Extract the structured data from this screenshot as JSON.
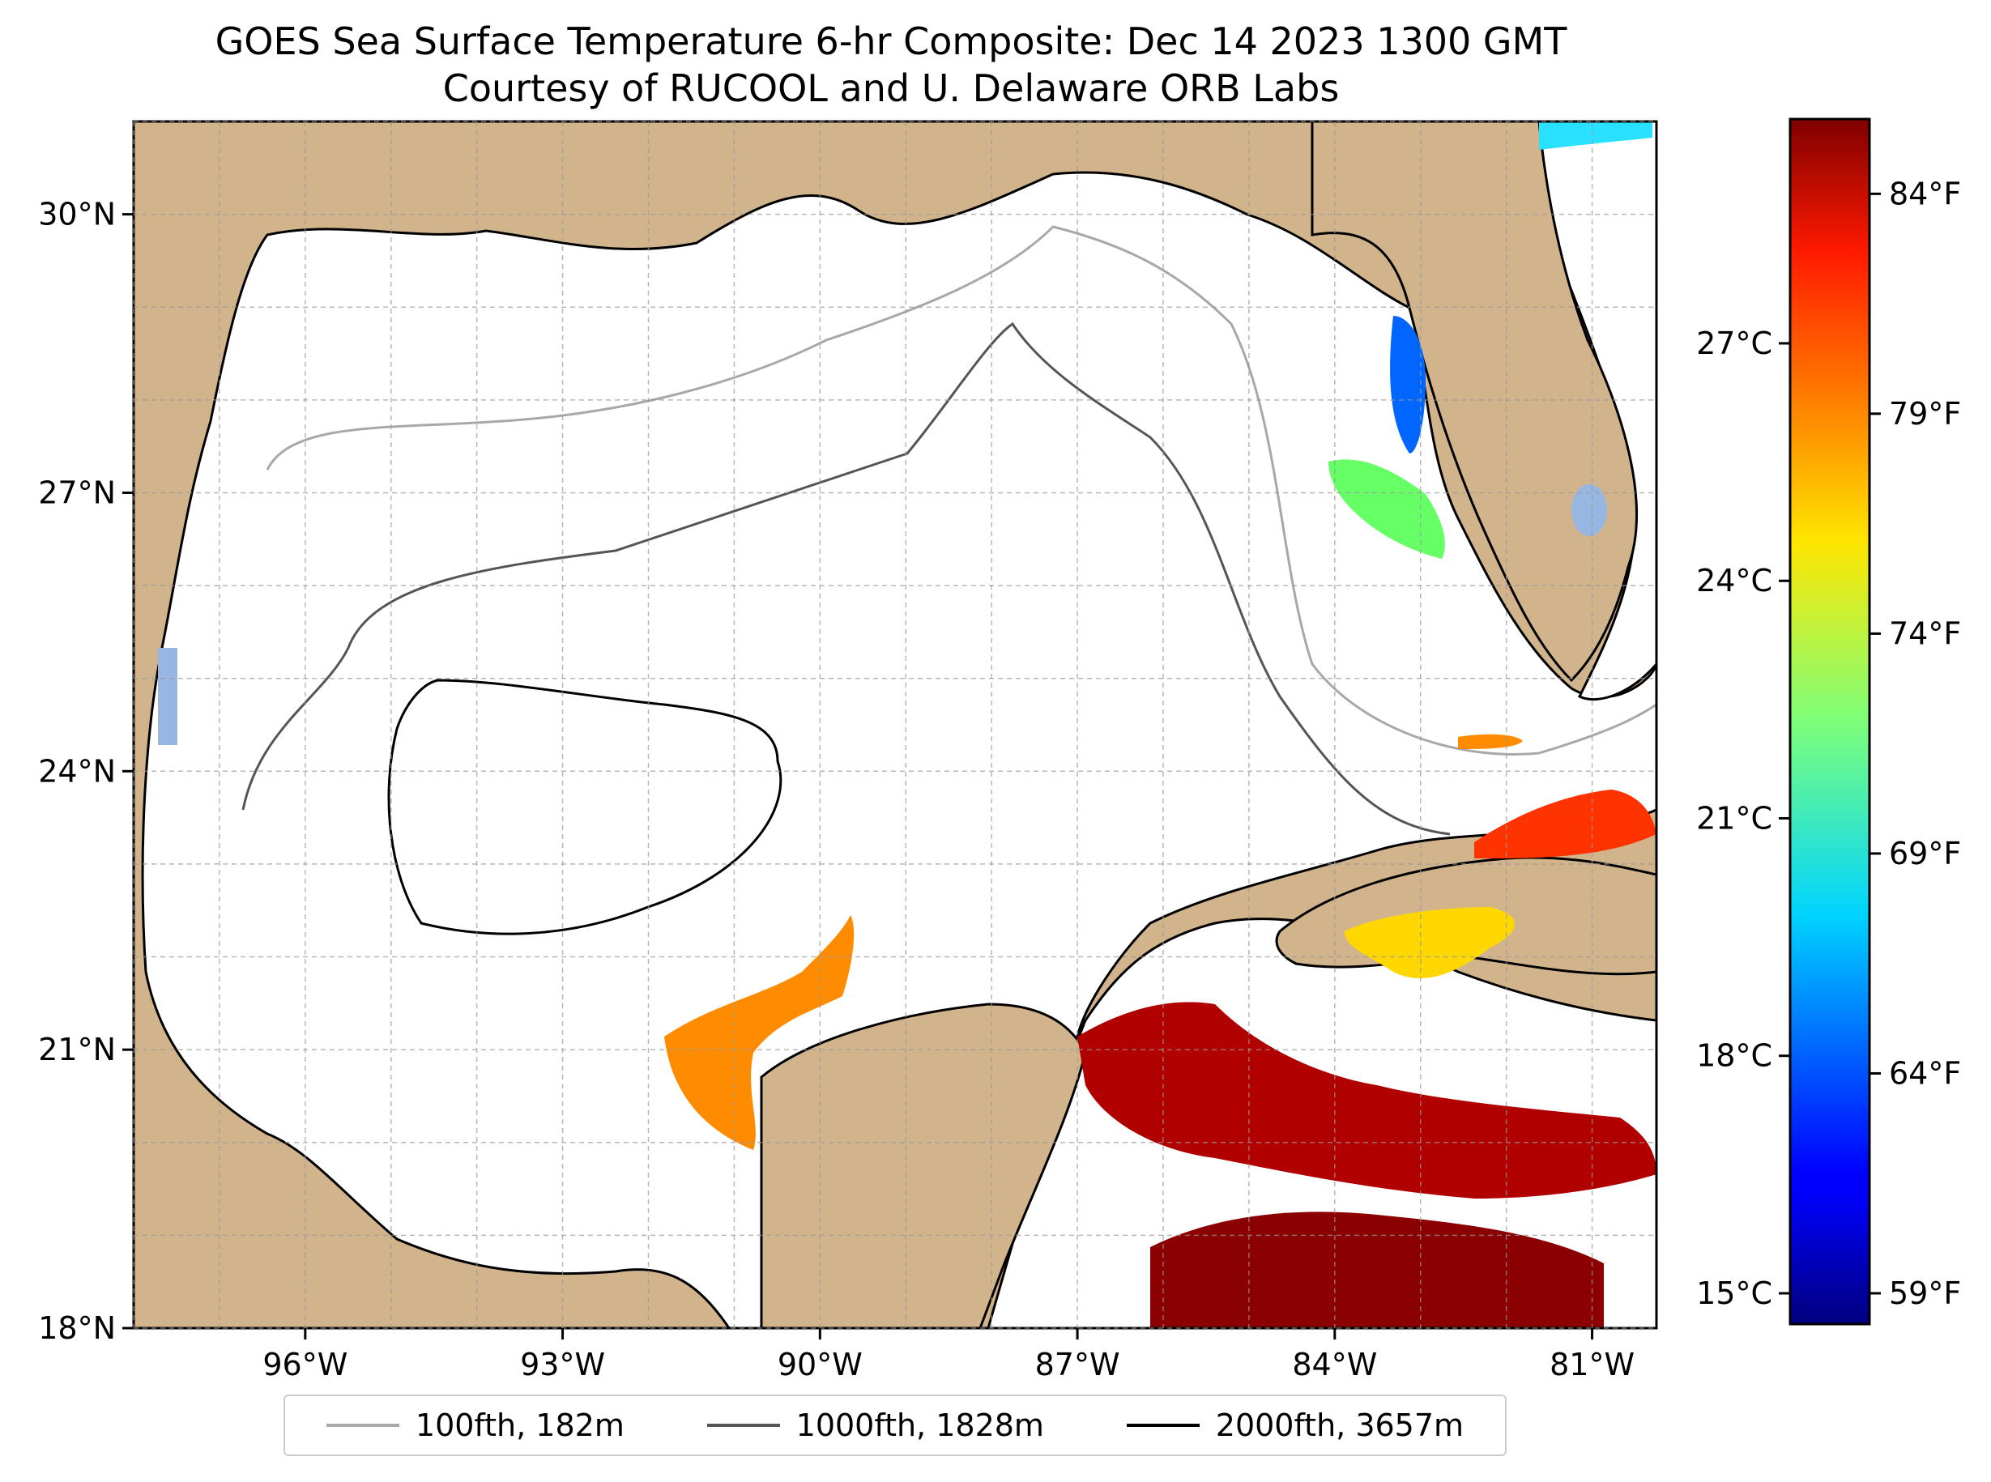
{
  "title": {
    "line1": "GOES Sea Surface Temperature 6-hr Composite: Dec 14 2023 1300 GMT",
    "line2": "Courtesy of RUCOOL and U. Delaware ORB Labs"
  },
  "map": {
    "lon_range": [
      -98,
      -80.25
    ],
    "lat_range": [
      18,
      31
    ],
    "land_color": "#d2b48c",
    "lake_color": "#97b6e1",
    "ocean_color": "#ffffff",
    "lon_ticks": [
      "96°W",
      "93°W",
      "90°W",
      "87°W",
      "84°W",
      "81°W"
    ],
    "lat_ticks": [
      "30°N",
      "27°N",
      "24°N",
      "21°N",
      "18°N"
    ],
    "grid": true
  },
  "colorbar": {
    "colormap": "jet",
    "celsius_ticks": [
      "27°C",
      "24°C",
      "21°C",
      "18°C",
      "15°C"
    ],
    "fahrenheit_ticks": [
      "84°F",
      "79°F",
      "74°F",
      "69°F",
      "64°F",
      "59°F"
    ]
  },
  "legend": {
    "items": [
      {
        "label": "100fth, 182m",
        "color": "#a8a8a8"
      },
      {
        "label": "1000fth, 1828m",
        "color": "#555555"
      },
      {
        "label": "2000fth, 3657m",
        "color": "#000000"
      }
    ]
  }
}
